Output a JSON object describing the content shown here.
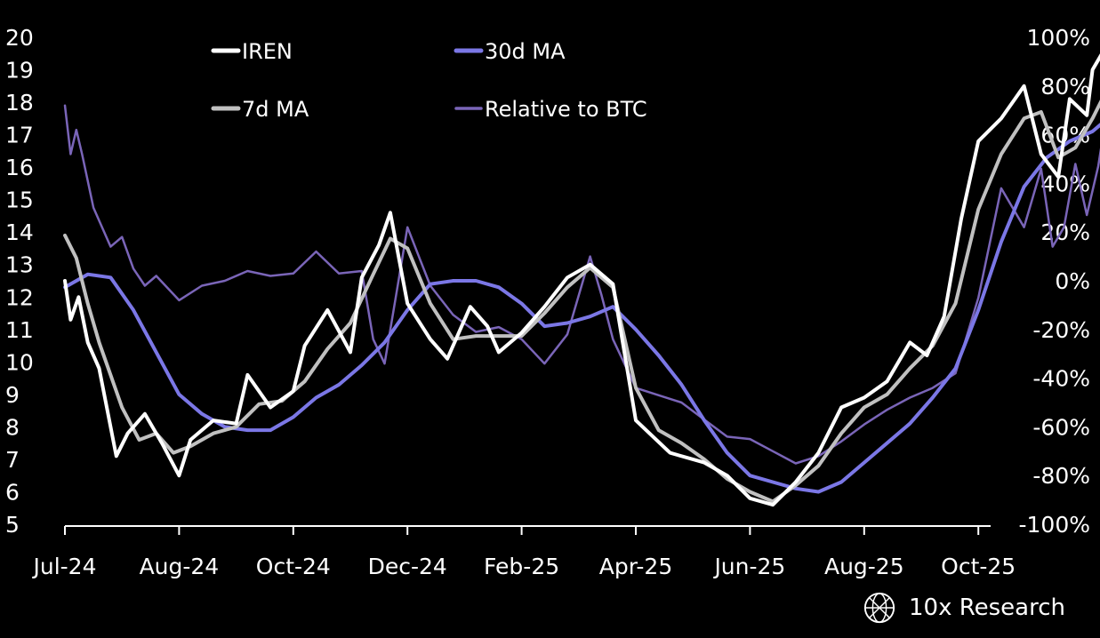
{
  "chart_data": {
    "type": "line",
    "title": "",
    "x": {
      "ticks": [
        "Jul-24",
        "Aug-24",
        "Oct-24",
        "Dec-24",
        "Feb-25",
        "Apr-25",
        "Jun-25",
        "Aug-25",
        "Oct-25"
      ]
    },
    "y_left": {
      "ylim": [
        5,
        20
      ],
      "ticks": [
        "20",
        "19",
        "18",
        "17",
        "16",
        "15",
        "14",
        "13",
        "12",
        "11",
        "10",
        "9",
        "8",
        "7",
        "6",
        "5"
      ]
    },
    "y_right": {
      "ylim": [
        -100,
        100
      ],
      "ticks": [
        "100%",
        "80%",
        "60%",
        "40%",
        "20%",
        "0%",
        "-20%",
        "-40%",
        "-60%",
        "-80%",
        "-100%"
      ]
    },
    "legend": [
      "IREN",
      "30d MA",
      "7d MA",
      "Relative to BTC"
    ],
    "series": [
      {
        "name": "IREN",
        "axis": "left",
        "color": "#ffffff",
        "width": 4,
        "points": [
          [
            0,
            12.5
          ],
          [
            0.05,
            11.3
          ],
          [
            0.12,
            12
          ],
          [
            0.2,
            10.6
          ],
          [
            0.3,
            9.8
          ],
          [
            0.45,
            7.1
          ],
          [
            0.55,
            7.8
          ],
          [
            0.7,
            8.4
          ],
          [
            0.85,
            7.5
          ],
          [
            1,
            6.5
          ],
          [
            1.1,
            7.6
          ],
          [
            1.3,
            8.2
          ],
          [
            1.5,
            8.1
          ],
          [
            1.6,
            9.6
          ],
          [
            1.8,
            8.6
          ],
          [
            2,
            9.1
          ],
          [
            2.1,
            10.5
          ],
          [
            2.3,
            11.6
          ],
          [
            2.5,
            10.3
          ],
          [
            2.6,
            12.6
          ],
          [
            2.75,
            13.6
          ],
          [
            2.85,
            14.6
          ],
          [
            3.0,
            11.8
          ],
          [
            3.2,
            10.7
          ],
          [
            3.35,
            10.1
          ],
          [
            3.55,
            11.7
          ],
          [
            3.7,
            11.1
          ],
          [
            3.8,
            10.3
          ],
          [
            4.0,
            10.9
          ],
          [
            4.2,
            11.7
          ],
          [
            4.4,
            12.6
          ],
          [
            4.6,
            13.0
          ],
          [
            4.8,
            12.4
          ],
          [
            5.0,
            8.2
          ],
          [
            5.3,
            7.2
          ],
          [
            5.6,
            6.9
          ],
          [
            5.8,
            6.5
          ],
          [
            6.0,
            5.8
          ],
          [
            6.2,
            5.6
          ],
          [
            6.4,
            6.3
          ],
          [
            6.6,
            7.2
          ],
          [
            6.8,
            8.6
          ],
          [
            7.0,
            8.9
          ],
          [
            7.2,
            9.4
          ],
          [
            7.4,
            10.6
          ],
          [
            7.55,
            10.2
          ],
          [
            7.7,
            11.4
          ],
          [
            7.85,
            14.4
          ],
          [
            8.0,
            16.8
          ],
          [
            8.2,
            17.5
          ],
          [
            8.4,
            18.5
          ],
          [
            8.55,
            16.4
          ],
          [
            8.7,
            15.7
          ],
          [
            8.8,
            18.1
          ],
          [
            8.95,
            17.6
          ],
          [
            9.0,
            19.0
          ],
          [
            9.1,
            19.6
          ]
        ]
      },
      {
        "name": "7d MA",
        "axis": "left",
        "color": "#c0c0c0",
        "width": 4,
        "points": [
          [
            0,
            13.9
          ],
          [
            0.1,
            13.2
          ],
          [
            0.2,
            11.8
          ],
          [
            0.3,
            10.6
          ],
          [
            0.5,
            8.6
          ],
          [
            0.65,
            7.6
          ],
          [
            0.8,
            7.8
          ],
          [
            0.95,
            7.2
          ],
          [
            1.1,
            7.4
          ],
          [
            1.3,
            7.8
          ],
          [
            1.5,
            8.0
          ],
          [
            1.7,
            8.7
          ],
          [
            1.9,
            8.8
          ],
          [
            2.1,
            9.4
          ],
          [
            2.3,
            10.4
          ],
          [
            2.5,
            11.2
          ],
          [
            2.7,
            12.7
          ],
          [
            2.85,
            13.8
          ],
          [
            3.0,
            13.5
          ],
          [
            3.2,
            11.8
          ],
          [
            3.4,
            10.7
          ],
          [
            3.6,
            10.8
          ],
          [
            3.8,
            10.8
          ],
          [
            4.0,
            10.8
          ],
          [
            4.2,
            11.5
          ],
          [
            4.4,
            12.3
          ],
          [
            4.6,
            12.9
          ],
          [
            4.8,
            12.3
          ],
          [
            5.0,
            9.2
          ],
          [
            5.2,
            7.9
          ],
          [
            5.4,
            7.5
          ],
          [
            5.6,
            7.0
          ],
          [
            5.8,
            6.4
          ],
          [
            6.0,
            6.0
          ],
          [
            6.2,
            5.7
          ],
          [
            6.4,
            6.2
          ],
          [
            6.6,
            6.8
          ],
          [
            6.8,
            7.8
          ],
          [
            7.0,
            8.6
          ],
          [
            7.2,
            9.0
          ],
          [
            7.4,
            9.8
          ],
          [
            7.6,
            10.5
          ],
          [
            7.8,
            11.8
          ],
          [
            8.0,
            14.7
          ],
          [
            8.2,
            16.4
          ],
          [
            8.4,
            17.5
          ],
          [
            8.55,
            17.7
          ],
          [
            8.7,
            16.3
          ],
          [
            8.85,
            16.6
          ],
          [
            9.0,
            17.5
          ],
          [
            9.1,
            18.2
          ]
        ]
      },
      {
        "name": "30d MA",
        "axis": "left",
        "color": "#7b77e6",
        "width": 4,
        "points": [
          [
            0,
            12.3
          ],
          [
            0.2,
            12.7
          ],
          [
            0.4,
            12.6
          ],
          [
            0.6,
            11.6
          ],
          [
            0.8,
            10.3
          ],
          [
            1.0,
            9.0
          ],
          [
            1.2,
            8.4
          ],
          [
            1.4,
            8.0
          ],
          [
            1.6,
            7.9
          ],
          [
            1.8,
            7.9
          ],
          [
            2.0,
            8.3
          ],
          [
            2.2,
            8.9
          ],
          [
            2.4,
            9.3
          ],
          [
            2.6,
            9.9
          ],
          [
            2.8,
            10.6
          ],
          [
            3.0,
            11.6
          ],
          [
            3.2,
            12.4
          ],
          [
            3.4,
            12.5
          ],
          [
            3.6,
            12.5
          ],
          [
            3.8,
            12.3
          ],
          [
            4.0,
            11.8
          ],
          [
            4.2,
            11.1
          ],
          [
            4.4,
            11.2
          ],
          [
            4.6,
            11.4
          ],
          [
            4.8,
            11.7
          ],
          [
            5.0,
            11.0
          ],
          [
            5.2,
            10.2
          ],
          [
            5.4,
            9.3
          ],
          [
            5.6,
            8.2
          ],
          [
            5.8,
            7.2
          ],
          [
            6.0,
            6.5
          ],
          [
            6.2,
            6.3
          ],
          [
            6.4,
            6.1
          ],
          [
            6.6,
            6.0
          ],
          [
            6.8,
            6.3
          ],
          [
            7.0,
            6.9
          ],
          [
            7.2,
            7.5
          ],
          [
            7.4,
            8.1
          ],
          [
            7.6,
            8.9
          ],
          [
            7.8,
            9.8
          ],
          [
            8.0,
            11.6
          ],
          [
            8.2,
            13.7
          ],
          [
            8.4,
            15.4
          ],
          [
            8.6,
            16.3
          ],
          [
            8.8,
            16.8
          ],
          [
            9.0,
            17.1
          ],
          [
            9.1,
            17.4
          ]
        ]
      },
      {
        "name": "Relative to BTC",
        "axis": "right",
        "color": "#7a65b8",
        "width": 2.5,
        "points": [
          [
            0,
            72
          ],
          [
            0.05,
            52
          ],
          [
            0.1,
            62
          ],
          [
            0.15,
            52
          ],
          [
            0.25,
            30
          ],
          [
            0.4,
            14
          ],
          [
            0.5,
            18
          ],
          [
            0.6,
            5
          ],
          [
            0.7,
            -2
          ],
          [
            0.8,
            2
          ],
          [
            1.0,
            -8
          ],
          [
            1.2,
            -2
          ],
          [
            1.4,
            0
          ],
          [
            1.6,
            4
          ],
          [
            1.8,
            2
          ],
          [
            2.0,
            3
          ],
          [
            2.2,
            12
          ],
          [
            2.4,
            3
          ],
          [
            2.6,
            4
          ],
          [
            2.7,
            -24
          ],
          [
            2.8,
            -34
          ],
          [
            2.9,
            -6
          ],
          [
            3.0,
            22
          ],
          [
            3.1,
            10
          ],
          [
            3.2,
            -2
          ],
          [
            3.4,
            -14
          ],
          [
            3.6,
            -21
          ],
          [
            3.8,
            -19
          ],
          [
            4.0,
            -24
          ],
          [
            4.2,
            -34
          ],
          [
            4.4,
            -22
          ],
          [
            4.6,
            10
          ],
          [
            4.7,
            -6
          ],
          [
            4.8,
            -24
          ],
          [
            5.0,
            -44
          ],
          [
            5.2,
            -47
          ],
          [
            5.4,
            -50
          ],
          [
            5.6,
            -57
          ],
          [
            5.8,
            -64
          ],
          [
            6.0,
            -65
          ],
          [
            6.2,
            -70
          ],
          [
            6.4,
            -75
          ],
          [
            6.6,
            -72
          ],
          [
            6.8,
            -66
          ],
          [
            7.0,
            -59
          ],
          [
            7.2,
            -53
          ],
          [
            7.4,
            -48
          ],
          [
            7.6,
            -44
          ],
          [
            7.8,
            -38
          ],
          [
            8.0,
            -7
          ],
          [
            8.2,
            38
          ],
          [
            8.4,
            22
          ],
          [
            8.55,
            46
          ],
          [
            8.65,
            14
          ],
          [
            8.75,
            22
          ],
          [
            8.85,
            48
          ],
          [
            8.95,
            27
          ],
          [
            9.05,
            47
          ],
          [
            9.1,
            62
          ]
        ]
      }
    ]
  },
  "brand": {
    "name": "10x Research"
  }
}
